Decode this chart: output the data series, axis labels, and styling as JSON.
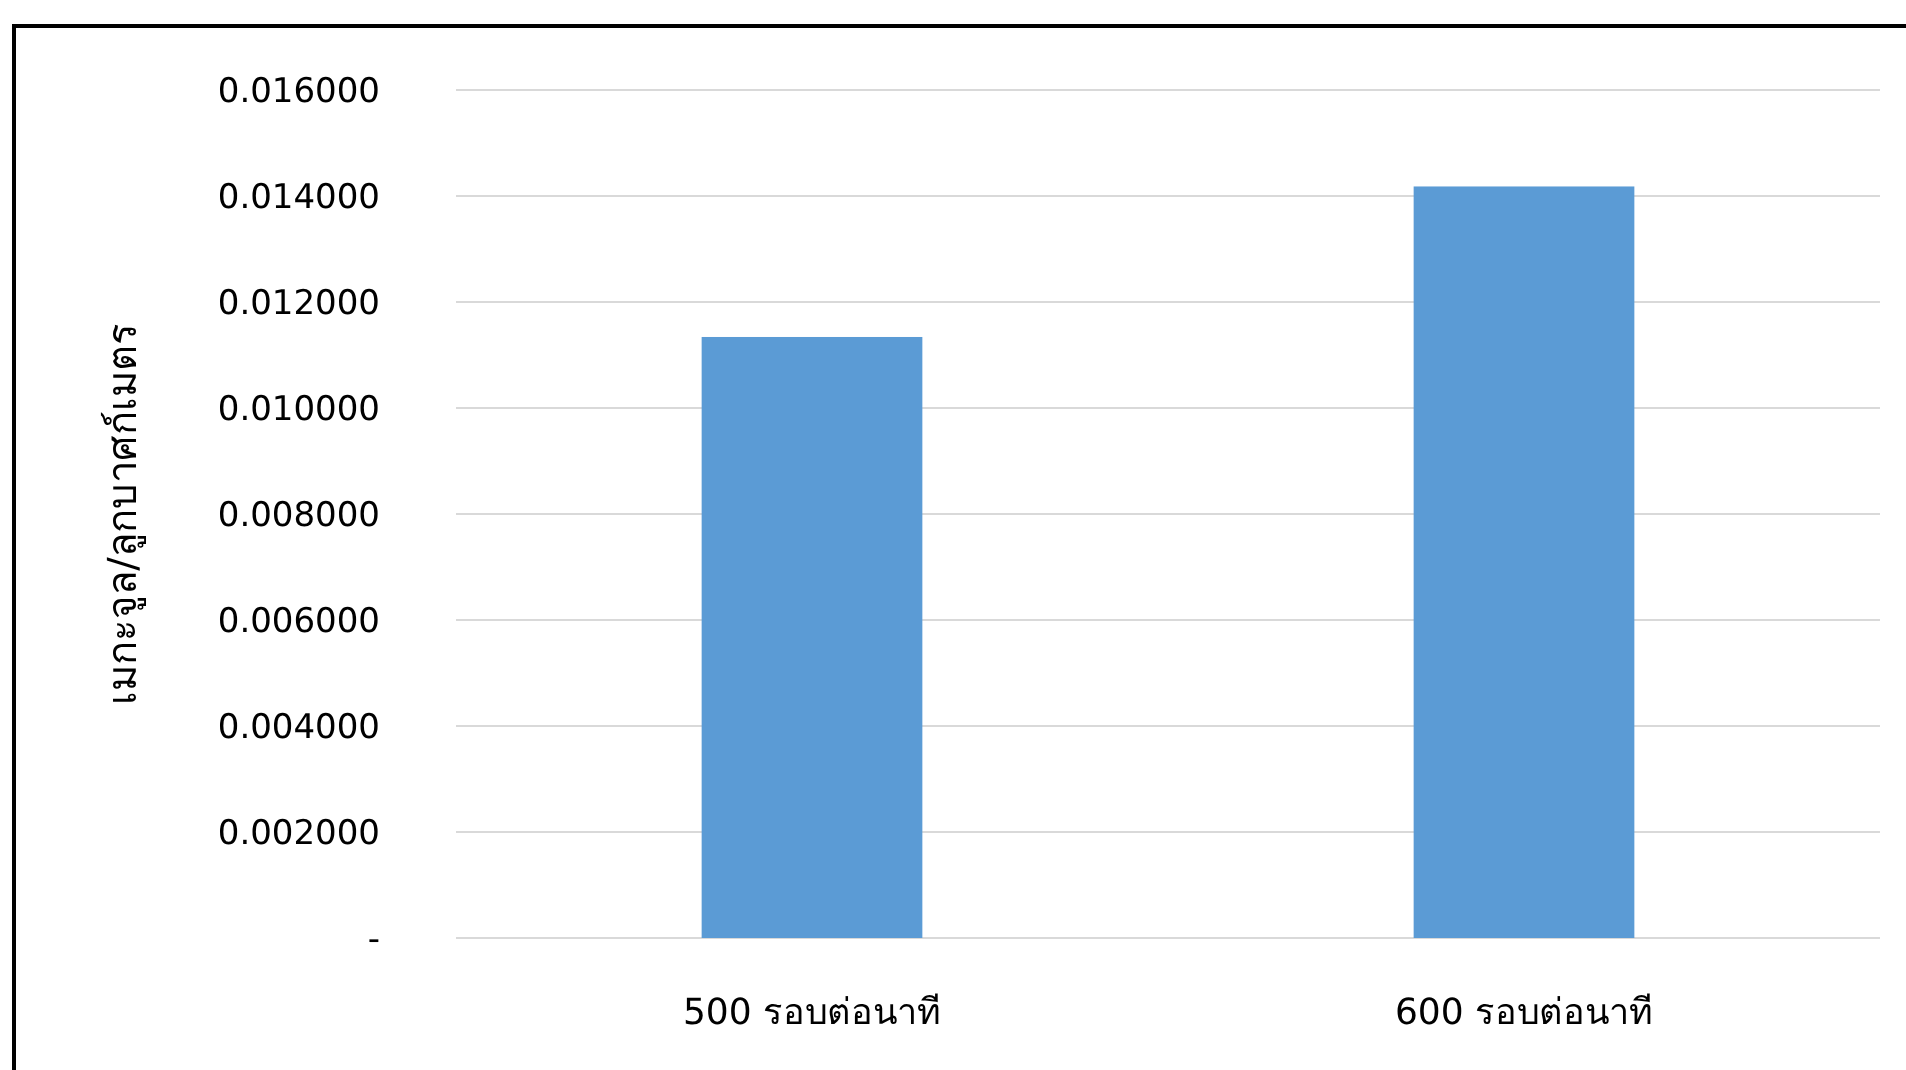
{
  "chart_data": {
    "type": "bar",
    "ylabel": "เมกะจูล/ลูกบาศก์เมตร",
    "categories": [
      "500 รอบต่อนาที",
      "600 รอบต่อนาที"
    ],
    "values": [
      0.01134,
      0.01418
    ],
    "color": "#5b9bd5",
    "ylim": [
      0,
      0.016
    ],
    "yticks": [
      {
        "value": 0,
        "label": "-"
      },
      {
        "value": 0.002,
        "label": "0.002000"
      },
      {
        "value": 0.004,
        "label": "0.004000"
      },
      {
        "value": 0.006,
        "label": "0.006000"
      },
      {
        "value": 0.008,
        "label": "0.008000"
      },
      {
        "value": 0.01,
        "label": "0.010000"
      },
      {
        "value": 0.012,
        "label": "0.012000"
      },
      {
        "value": 0.014,
        "label": "0.014000"
      },
      {
        "value": 0.016,
        "label": "0.016000"
      }
    ],
    "grid": "y"
  }
}
